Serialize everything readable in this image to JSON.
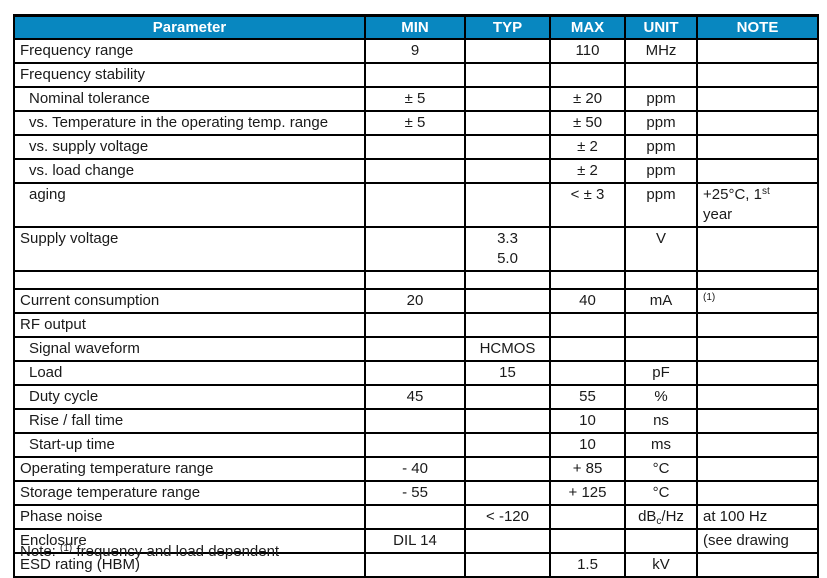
{
  "colors": {
    "header_bg": "#0887c0",
    "header_text": "#ffffff",
    "border": "#000000",
    "text": "#1a1a1a"
  },
  "table": {
    "columns": [
      "Parameter",
      "MIN",
      "TYP",
      "MAX",
      "UNIT",
      "NOTE"
    ],
    "rows": [
      {
        "param": "Frequency range",
        "indent": false,
        "min": "9",
        "typ": "",
        "max": "110",
        "unit": "MHz",
        "note": ""
      },
      {
        "param": "Frequency stability",
        "indent": false,
        "min": "",
        "typ": "",
        "max": "",
        "unit": "",
        "note": ""
      },
      {
        "param": "Nominal tolerance",
        "indent": true,
        "min": "± 5",
        "typ": "",
        "max": "± 20",
        "unit": "ppm",
        "note": ""
      },
      {
        "param": "vs. Temperature in the operating temp. range",
        "indent": true,
        "min": "± 5",
        "typ": "",
        "max": "± 50",
        "unit": "ppm",
        "note": ""
      },
      {
        "param": "vs. supply voltage",
        "indent": true,
        "min": "",
        "typ": "",
        "max": "± 2",
        "unit": "ppm",
        "note": ""
      },
      {
        "param": "vs. load change",
        "indent": true,
        "min": "",
        "typ": "",
        "max": "± 2",
        "unit": "ppm",
        "note": ""
      },
      {
        "param": "aging",
        "indent": true,
        "min": "",
        "typ": "",
        "max": "< ± 3",
        "unit": "ppm",
        "note": {
          "segs": [
            {
              "t": "+25°C, 1"
            },
            {
              "sup": "st"
            },
            {
              "br": true
            },
            {
              "t": "year"
            }
          ]
        }
      },
      {
        "param": "Supply voltage",
        "indent": false,
        "min": "",
        "typ": {
          "segs": [
            {
              "t": "3.3"
            },
            {
              "br": true
            },
            {
              "t": "5.0"
            }
          ]
        },
        "max": "",
        "unit": {
          "segs": [
            {
              "t": "V"
            }
          ],
          "valign": "middle"
        },
        "note": ""
      },
      {
        "kind": "spacer",
        "param": "",
        "indent": false,
        "min": "",
        "typ": "",
        "max": "",
        "unit": "",
        "note": ""
      },
      {
        "param": "Current consumption",
        "indent": false,
        "min": "20",
        "typ": "",
        "max": "40",
        "unit": "mA",
        "note": {
          "segs": [
            {
              "sup": "(1)"
            }
          ]
        }
      },
      {
        "param": "RF output",
        "indent": false,
        "min": "",
        "typ": "",
        "max": "",
        "unit": "",
        "note": ""
      },
      {
        "param": "Signal waveform",
        "indent": true,
        "min": "",
        "typ": "HCMOS",
        "max": "",
        "unit": "",
        "note": ""
      },
      {
        "param": "Load",
        "indent": true,
        "min": "",
        "typ": "15",
        "max": "",
        "unit": "pF",
        "note": ""
      },
      {
        "param": "Duty cycle",
        "indent": true,
        "min": "45",
        "typ": "",
        "max": "55",
        "unit": "%",
        "note": ""
      },
      {
        "param": "Rise / fall time",
        "indent": true,
        "min": "",
        "typ": "",
        "max": "10",
        "unit": "ns",
        "note": ""
      },
      {
        "param": "Start-up time",
        "indent": true,
        "min": "",
        "typ": "",
        "max": "10",
        "unit": "ms",
        "note": ""
      },
      {
        "param": "Operating temperature range",
        "indent": false,
        "min": "- 40",
        "typ": "",
        "max": "+ 85",
        "unit": "°C",
        "note": ""
      },
      {
        "param": "Storage temperature range",
        "indent": false,
        "min": "- 55",
        "typ": "",
        "max": "+ 125",
        "unit": "°C",
        "note": ""
      },
      {
        "param": "Phase noise",
        "indent": false,
        "min": "",
        "typ": "< -120",
        "max": "",
        "unit": {
          "segs": [
            {
              "t": "dB"
            },
            {
              "sub": "c"
            },
            {
              "t": "/Hz"
            }
          ]
        },
        "note": "at 100 Hz"
      },
      {
        "param": "Enclosure",
        "indent": false,
        "min": "DIL 14",
        "typ": "",
        "max": "",
        "unit": "",
        "note": "(see drawing"
      },
      {
        "param": "ESD rating (HBM)",
        "indent": false,
        "min": "",
        "typ": "",
        "max": "1.5",
        "unit": "kV",
        "note": ""
      }
    ],
    "footer_note": {
      "segs": [
        {
          "t": "Note: "
        },
        {
          "sup": "(1)"
        },
        {
          "t": " frequency and load dependent"
        }
      ]
    }
  }
}
